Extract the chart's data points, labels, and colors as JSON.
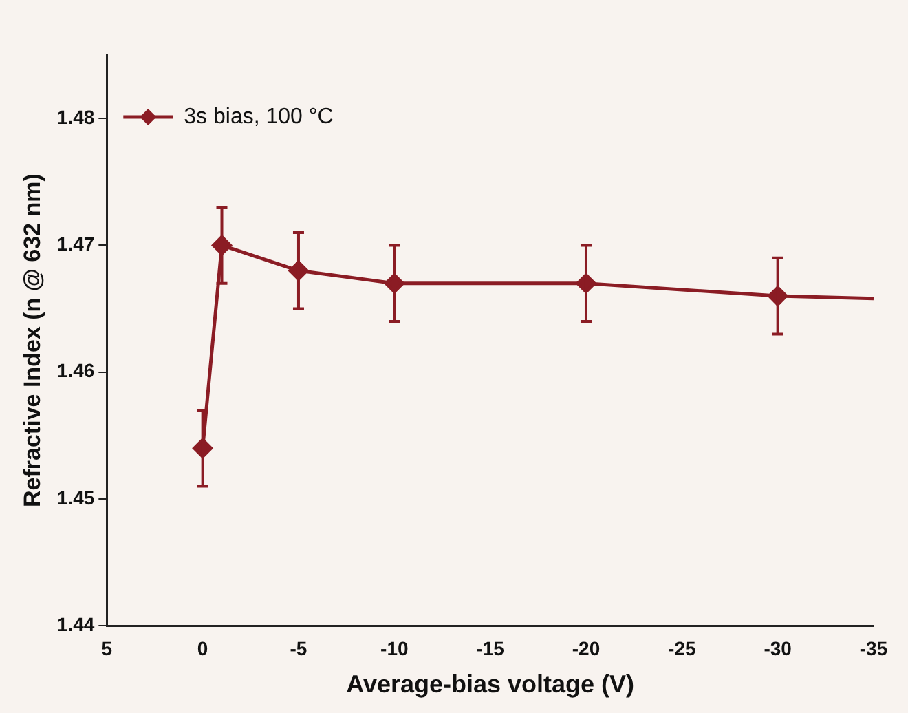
{
  "chart_data": {
    "type": "line",
    "xlabel": "Average-bias voltage (V)",
    "ylabel": "Refractive Index (n @ 632 nm)",
    "xlim": [
      5,
      -35
    ],
    "xticks": [
      5,
      0,
      -5,
      -10,
      -15,
      -20,
      -25,
      -30,
      -35
    ],
    "ylim": [
      1.44,
      1.485
    ],
    "yticks": [
      1.44,
      1.45,
      1.46,
      1.47,
      1.48
    ],
    "grid": false,
    "legend": "top left",
    "marker": "diamond",
    "line_style": "solid",
    "series": [
      {
        "name": "3s bias, 100 °C",
        "color": "#8b1c24",
        "x": [
          0,
          -1,
          -5,
          -10,
          -20,
          -30
        ],
        "values": [
          1.454,
          1.47,
          1.468,
          1.467,
          1.467,
          1.466
        ],
        "errors": [
          0.003,
          0.003,
          0.003,
          0.003,
          0.003,
          0.003
        ]
      },
      {
        "type": "line",
        "color": "#8b1c24",
        "marker": "none",
        "x": [
          -30,
          -35
        ],
        "values": [
          1.466,
          1.4658
        ]
      }
    ]
  }
}
